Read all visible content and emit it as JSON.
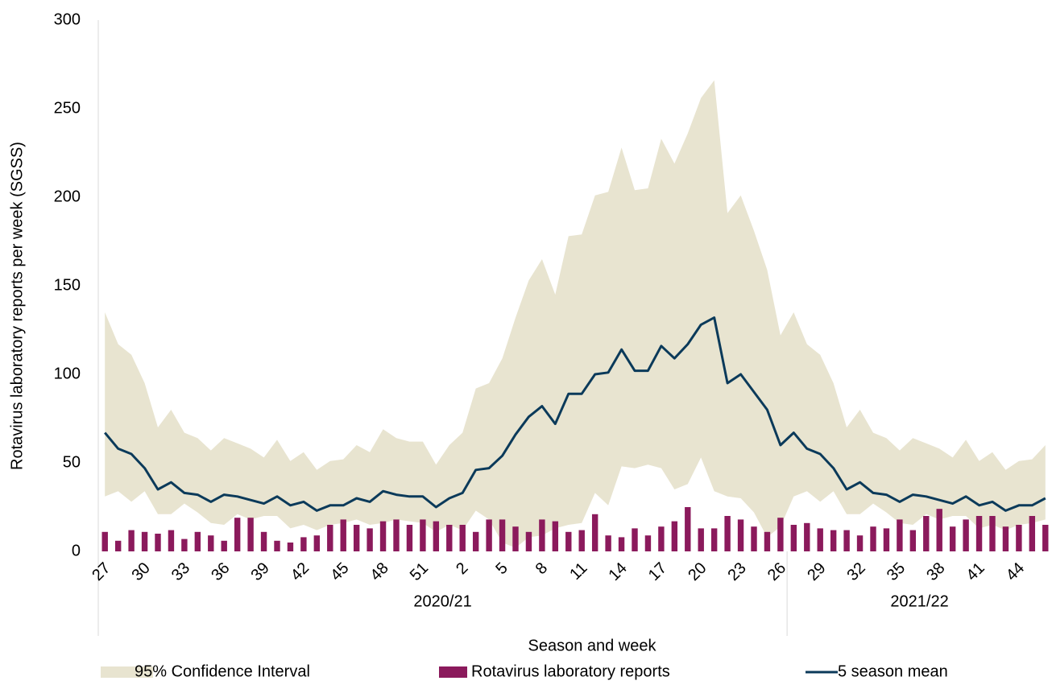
{
  "chart_data": {
    "type": "combo",
    "y_label": "Rotavirus laboratory reports per week (SGSS)",
    "x_label": "Season and week",
    "groups": [
      {
        "name": "2020/21",
        "categories": [
          27,
          null,
          null,
          30,
          null,
          null,
          33,
          null,
          null,
          36,
          null,
          null,
          39,
          null,
          null,
          42,
          null,
          null,
          45,
          null,
          null,
          48,
          null,
          null,
          51,
          null,
          null,
          2,
          null,
          null,
          5,
          null,
          null,
          8,
          null,
          null,
          11,
          null,
          null,
          14,
          null,
          null,
          17,
          null,
          null,
          20,
          null,
          null,
          23,
          null,
          null,
          26
        ]
      },
      {
        "name": "2021/22",
        "categories": [
          null,
          null,
          29,
          null,
          null,
          32,
          null,
          null,
          35,
          null,
          null,
          38,
          null,
          null,
          41,
          null,
          null,
          44,
          null,
          null
        ]
      }
    ],
    "ylim": [
      0,
      300
    ],
    "yticks": [
      0,
      50,
      100,
      150,
      200,
      250,
      300
    ],
    "grid": false,
    "series": [
      {
        "name": "95% Confidence Interval",
        "type": "band",
        "color": "#e8e4d0",
        "upper": [
          135,
          117,
          111,
          95,
          70,
          80,
          67,
          64,
          57,
          64,
          61,
          58,
          53,
          63,
          51,
          56,
          46,
          51,
          52,
          60,
          56,
          69,
          64,
          62,
          62,
          49,
          60,
          67,
          92,
          95,
          109,
          132,
          153,
          165,
          145,
          178,
          179,
          201,
          203,
          228,
          204,
          205,
          233,
          219,
          236,
          256,
          266,
          191,
          201,
          181,
          159,
          122,
          135,
          117,
          111,
          95,
          70,
          80,
          67,
          64,
          57,
          64,
          61,
          58,
          53,
          63,
          51,
          56,
          46,
          51,
          52,
          60
        ],
        "lower": [
          31,
          34,
          28,
          34,
          21,
          21,
          27,
          22,
          16,
          15,
          21,
          18,
          20,
          20,
          13,
          15,
          12,
          15,
          16,
          18,
          15,
          16,
          18,
          17,
          16,
          11,
          15,
          12,
          23,
          18,
          5,
          2,
          8,
          9,
          13,
          15,
          16,
          33,
          26,
          48,
          47,
          49,
          47,
          35,
          38,
          53,
          34,
          31,
          30,
          22,
          8,
          14,
          31,
          34,
          28,
          34,
          21,
          21,
          27,
          22,
          16,
          15,
          21,
          18,
          20,
          20,
          13,
          15,
          12,
          15,
          16,
          18
        ]
      },
      {
        "name": "Rotavirus laboratory reports",
        "type": "bar",
        "color": "#8b1a5c",
        "values": [
          11,
          6,
          12,
          11,
          10,
          12,
          7,
          11,
          9,
          6,
          19,
          19,
          11,
          6,
          5,
          8,
          9,
          15,
          18,
          15,
          13,
          17,
          18,
          15,
          18,
          17,
          15,
          15,
          11,
          18,
          18,
          14,
          11,
          18,
          17,
          11,
          12,
          21,
          9,
          8,
          13,
          9,
          14,
          17,
          25,
          13,
          13,
          20,
          18,
          14,
          11,
          19,
          15,
          16,
          13,
          12,
          12,
          9,
          14,
          13,
          18,
          12,
          20,
          24,
          14,
          18,
          20,
          20,
          14,
          15,
          20,
          15
        ]
      },
      {
        "name": "5 season mean",
        "type": "line",
        "color": "#0b3a5a",
        "values": [
          67,
          58,
          55,
          47,
          35,
          39,
          33,
          32,
          28,
          32,
          31,
          29,
          27,
          31,
          26,
          28,
          23,
          26,
          26,
          30,
          28,
          34,
          32,
          31,
          31,
          25,
          30,
          33,
          46,
          47,
          54,
          66,
          76,
          82,
          72,
          89,
          89,
          100,
          101,
          114,
          102,
          102,
          116,
          109,
          117,
          128,
          132,
          95,
          100,
          90,
          80,
          60,
          67,
          58,
          55,
          47,
          35,
          39,
          33,
          32,
          28,
          32,
          31,
          29,
          27,
          31,
          26,
          28,
          23,
          26,
          26,
          30
        ]
      }
    ]
  }
}
